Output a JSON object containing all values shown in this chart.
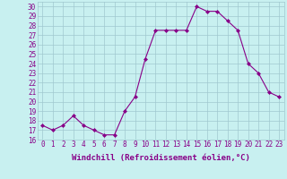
{
  "x": [
    0,
    1,
    2,
    3,
    4,
    5,
    6,
    7,
    8,
    9,
    10,
    11,
    12,
    13,
    14,
    15,
    16,
    17,
    18,
    19,
    20,
    21,
    22,
    23
  ],
  "y": [
    17.5,
    17.0,
    17.5,
    18.5,
    17.5,
    17.0,
    16.5,
    16.5,
    19.0,
    20.5,
    24.5,
    27.5,
    27.5,
    27.5,
    27.5,
    30.0,
    29.5,
    29.5,
    28.5,
    27.5,
    24.0,
    23.0,
    21.0,
    20.5
  ],
  "line_color": "#880088",
  "marker": "D",
  "marker_size": 2,
  "bg_color": "#c8f0f0",
  "grid_color": "#a0c8d0",
  "xlabel": "Windchill (Refroidissement éolien,°C)",
  "xlim": [
    -0.5,
    23.5
  ],
  "ylim": [
    16,
    30.5
  ],
  "yticks": [
    16,
    17,
    18,
    19,
    20,
    21,
    22,
    23,
    24,
    25,
    26,
    27,
    28,
    29,
    30
  ],
  "xticks": [
    0,
    1,
    2,
    3,
    4,
    5,
    6,
    7,
    8,
    9,
    10,
    11,
    12,
    13,
    14,
    15,
    16,
    17,
    18,
    19,
    20,
    21,
    22,
    23
  ],
  "tick_label_size": 5.5,
  "xlabel_size": 6.5
}
